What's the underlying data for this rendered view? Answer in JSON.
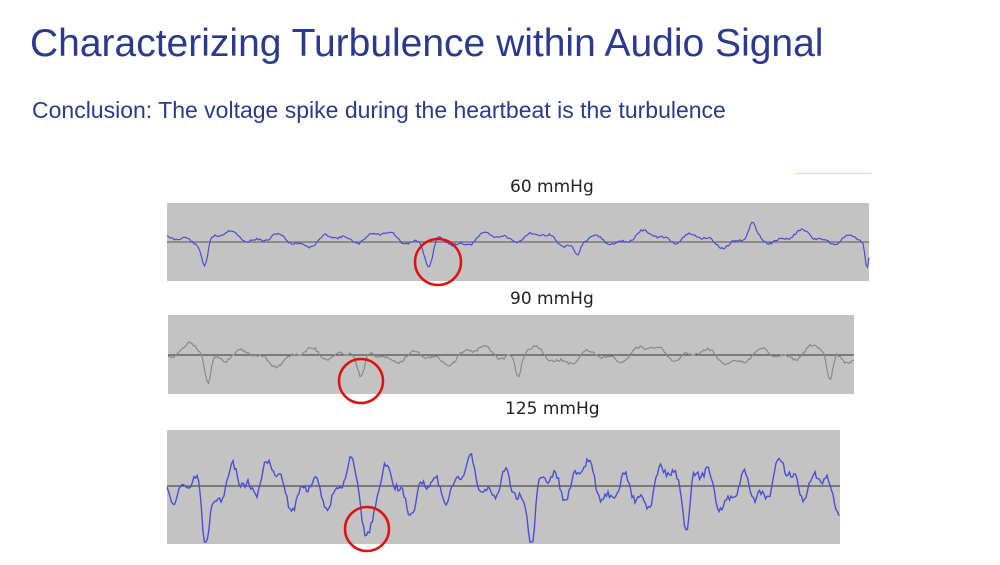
{
  "slide": {
    "title": "Characterizing Turbulence within Audio Signal",
    "subtitle": "Conclusion: The voltage spike during the heartbeat is the turbulence"
  },
  "panels": [
    {
      "label": "60 mmHg",
      "wave_color": "#4a4fd8",
      "baseline_color": "#555555"
    },
    {
      "label": "90 mmHg",
      "wave_color": "#8a8a8a",
      "baseline_color": "#333333"
    },
    {
      "label": "125 mmHg",
      "wave_color": "#4a4fd8",
      "baseline_color": "#333333"
    }
  ],
  "highlight": {
    "shape": "circle",
    "color": "#e01010"
  }
}
